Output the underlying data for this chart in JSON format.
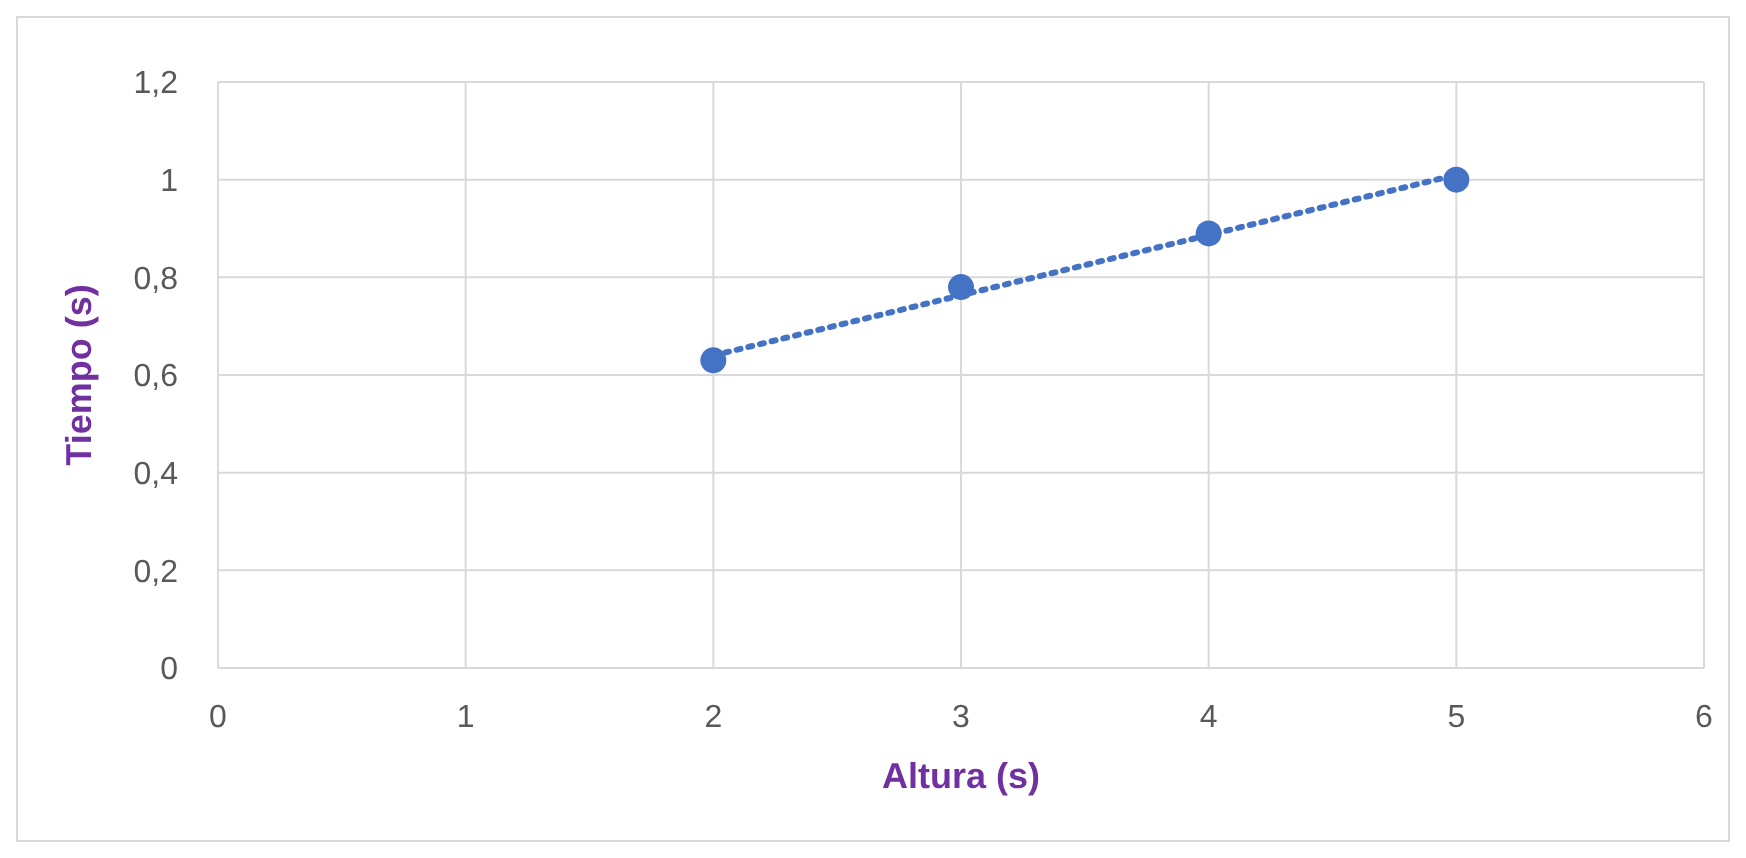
{
  "chart_data": {
    "type": "scatter",
    "xlabel": "Altura (s)",
    "ylabel": "Tiempo (s)",
    "xlim": [
      0,
      6
    ],
    "xticks": [
      0,
      1,
      2,
      3,
      4,
      5,
      6
    ],
    "ylim": [
      0,
      1.2
    ],
    "yticks": [
      0,
      {
        "value": 0.2,
        "label": "0,2"
      },
      {
        "value": 0.4,
        "label": "0,4"
      },
      {
        "value": 0.6,
        "label": "0,6"
      },
      {
        "value": 0.8,
        "label": "0,8"
      },
      1,
      {
        "value": 1.2,
        "label": "1,2"
      }
    ],
    "grid": true,
    "series": [
      {
        "color": "#4472c4",
        "marker": "circle",
        "x": [
          2,
          3,
          4,
          5
        ],
        "values": [
          0.63,
          0.78,
          0.89,
          1.0
        ]
      },
      {
        "type": "line",
        "color": "#4472c4",
        "marker": "none",
        "line_style": "dotted",
        "x": [
          2,
          5
        ],
        "values": [
          0.64,
          1.01
        ]
      }
    ]
  }
}
